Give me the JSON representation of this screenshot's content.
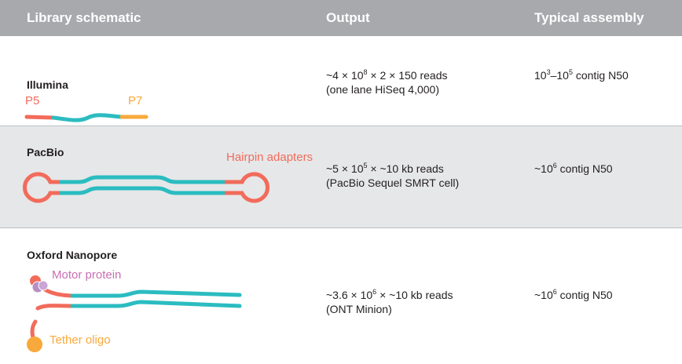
{
  "header": [
    "Library schematic",
    "Output",
    "Typical assembly"
  ],
  "rows": [
    {
      "platform": "Illumina",
      "labels": [
        "P5",
        "P7"
      ],
      "output": [
        [
          {
            "text": "~4 × 10"
          },
          {
            "sup": "8"
          },
          {
            "text": " × 2 × 150 reads"
          }
        ],
        [
          {
            "text": "(one lane HiSeq 4,000)"
          }
        ]
      ],
      "assembly": [
        {
          "text": "10"
        },
        {
          "sup": "3"
        },
        {
          "text": "–10"
        },
        {
          "sup": "5"
        },
        {
          "text": " contig N50"
        }
      ]
    },
    {
      "platform": "PacBio",
      "labels": [
        "Hairpin adapters"
      ],
      "output": [
        [
          {
            "text": "~5 × 10"
          },
          {
            "sup": "5"
          },
          {
            "text": " × ~10 kb reads"
          }
        ],
        [
          {
            "text": "(PacBio Sequel SMRT cell)"
          }
        ]
      ],
      "assembly": [
        {
          "text": "~10"
        },
        {
          "sup": "6"
        },
        {
          "text": " contig N50"
        }
      ]
    },
    {
      "platform": "Oxford Nanopore",
      "labels": [
        "Motor protein",
        "Tether oligo"
      ],
      "output": [
        [
          {
            "text": "~3.6 × 10"
          },
          {
            "sup": "6"
          },
          {
            "text": " × ~10 kb reads"
          }
        ],
        [
          {
            "text": "(ONT Minion)"
          }
        ]
      ],
      "assembly": [
        {
          "text": "~10"
        },
        {
          "sup": "6"
        },
        {
          "text": " contig N50"
        }
      ]
    }
  ]
}
